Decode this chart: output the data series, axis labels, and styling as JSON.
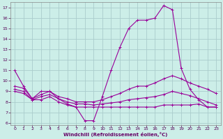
{
  "xlabel": "Windchill (Refroidissement éolien,°C)",
  "background_color": "#cceee8",
  "grid_color": "#aacccc",
  "line_color": "#990099",
  "xlim": [
    -0.5,
    23.5
  ],
  "ylim": [
    5.8,
    17.5
  ],
  "yticks": [
    6,
    7,
    8,
    9,
    10,
    11,
    12,
    13,
    14,
    15,
    16,
    17
  ],
  "xticks": [
    0,
    1,
    2,
    3,
    4,
    5,
    6,
    7,
    8,
    9,
    10,
    11,
    12,
    13,
    14,
    15,
    16,
    17,
    18,
    19,
    20,
    21,
    22,
    23
  ],
  "series": [
    {
      "x": [
        0,
        1,
        2,
        3,
        4,
        5,
        6,
        7,
        8,
        9,
        10,
        11,
        12,
        13,
        14,
        15,
        16,
        17,
        18,
        19,
        20,
        21,
        22,
        23
      ],
      "y": [
        11.0,
        9.5,
        8.3,
        9.0,
        9.0,
        8.3,
        7.8,
        7.5,
        6.2,
        6.2,
        8.5,
        11.0,
        13.2,
        15.0,
        15.8,
        15.8,
        16.0,
        17.2,
        16.8,
        11.2,
        9.2,
        8.2,
        7.5,
        7.5
      ]
    },
    {
      "x": [
        0,
        1,
        2,
        3,
        4,
        5,
        6,
        7,
        8,
        9,
        10,
        11,
        12,
        13,
        14,
        15,
        16,
        17,
        18,
        19,
        20,
        21,
        22,
        23
      ],
      "y": [
        9.5,
        9.3,
        8.3,
        8.7,
        9.0,
        8.5,
        8.3,
        8.0,
        8.0,
        8.0,
        8.2,
        8.5,
        8.8,
        9.2,
        9.5,
        9.5,
        9.8,
        10.2,
        10.5,
        10.2,
        9.8,
        9.5,
        9.2,
        8.8
      ]
    },
    {
      "x": [
        0,
        1,
        2,
        3,
        4,
        5,
        6,
        7,
        8,
        9,
        10,
        11,
        12,
        13,
        14,
        15,
        16,
        17,
        18,
        19,
        20,
        21,
        22,
        23
      ],
      "y": [
        9.2,
        9.0,
        8.2,
        8.5,
        8.7,
        8.3,
        8.0,
        7.8,
        7.8,
        7.7,
        7.8,
        7.9,
        8.0,
        8.2,
        8.3,
        8.4,
        8.5,
        8.7,
        9.0,
        8.8,
        8.6,
        8.3,
        8.0,
        7.7
      ]
    },
    {
      "x": [
        0,
        1,
        2,
        3,
        4,
        5,
        6,
        7,
        8,
        9,
        10,
        11,
        12,
        13,
        14,
        15,
        16,
        17,
        18,
        19,
        20,
        21,
        22,
        23
      ],
      "y": [
        9.0,
        8.8,
        8.2,
        8.2,
        8.5,
        8.0,
        7.7,
        7.5,
        7.5,
        7.5,
        7.5,
        7.5,
        7.5,
        7.5,
        7.5,
        7.5,
        7.5,
        7.7,
        7.7,
        7.7,
        7.7,
        7.8,
        7.5,
        7.5
      ]
    }
  ]
}
